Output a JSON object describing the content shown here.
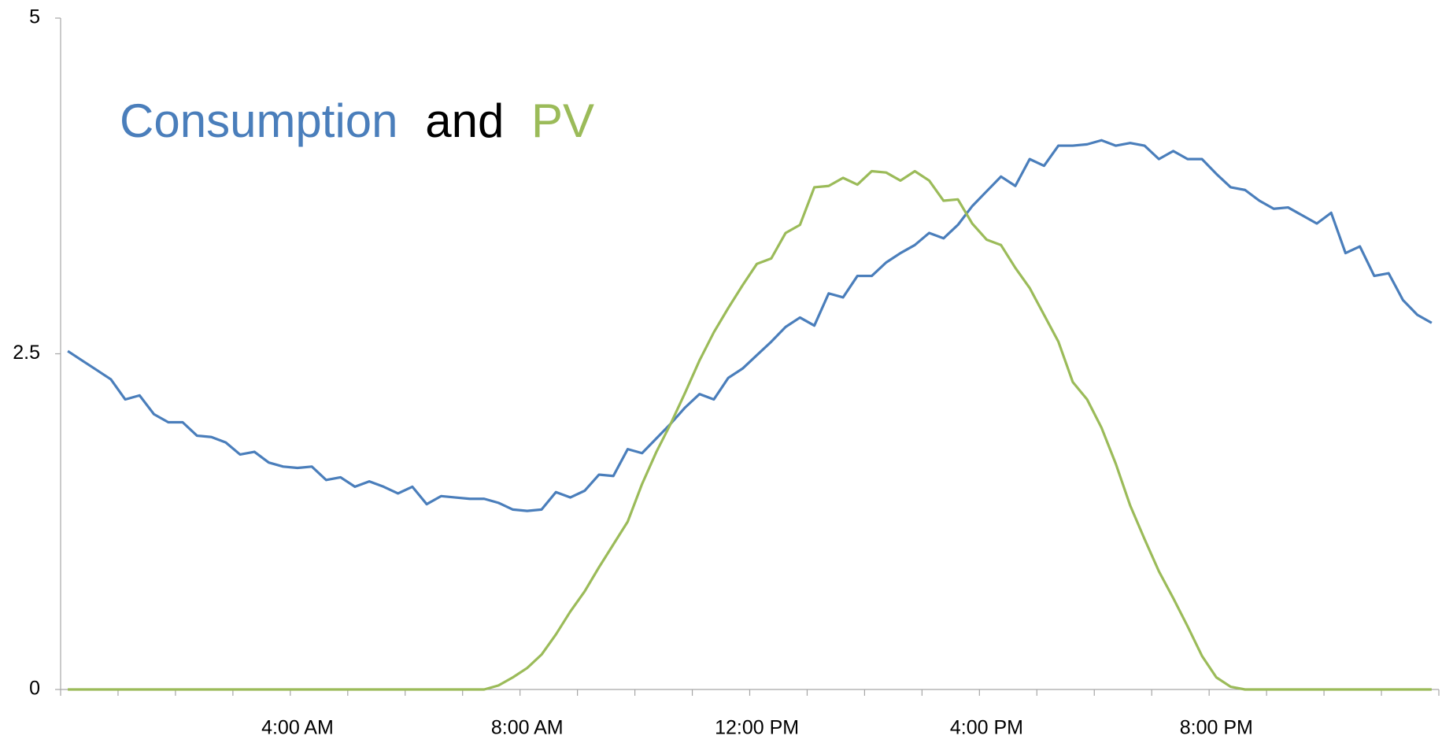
{
  "chart_data": {
    "type": "line",
    "title_connector": "and",
    "title_color": "#000000",
    "categories": [
      null,
      null,
      null,
      null,
      null,
      null,
      null,
      null,
      null,
      null,
      null,
      null,
      null,
      null,
      null,
      null,
      "4:00 AM",
      null,
      null,
      null,
      null,
      null,
      null,
      null,
      null,
      null,
      null,
      null,
      null,
      null,
      null,
      null,
      "8:00 AM",
      null,
      null,
      null,
      null,
      null,
      null,
      null,
      null,
      null,
      null,
      null,
      null,
      null,
      null,
      null,
      "12:00 PM",
      null,
      null,
      null,
      null,
      null,
      null,
      null,
      null,
      null,
      null,
      null,
      null,
      null,
      null,
      null,
      "4:00 PM",
      null,
      null,
      null,
      null,
      null,
      null,
      null,
      null,
      null,
      null,
      null,
      null,
      null,
      null,
      null,
      "8:00 PM",
      null,
      null,
      null,
      null,
      null,
      null,
      null,
      null,
      null,
      null,
      null,
      null,
      null,
      null,
      null
    ],
    "series": [
      {
        "name": "Consumption",
        "color": "#4a7ebb",
        "values": [
          2.52,
          2.45,
          2.38,
          2.31,
          2.16,
          2.19,
          2.05,
          1.99,
          1.99,
          1.89,
          1.88,
          1.84,
          1.75,
          1.77,
          1.69,
          1.66,
          1.65,
          1.66,
          1.56,
          1.58,
          1.51,
          1.55,
          1.51,
          1.46,
          1.51,
          1.38,
          1.44,
          1.43,
          1.42,
          1.42,
          1.39,
          1.34,
          1.33,
          1.34,
          1.47,
          1.43,
          1.48,
          1.6,
          1.59,
          1.79,
          1.76,
          1.87,
          1.98,
          2.1,
          2.2,
          2.16,
          2.32,
          2.39,
          2.49,
          2.59,
          2.7,
          2.77,
          2.71,
          2.95,
          2.92,
          3.08,
          3.08,
          3.18,
          3.25,
          3.31,
          3.4,
          3.36,
          3.46,
          3.6,
          3.71,
          3.82,
          3.75,
          3.95,
          3.9,
          4.05,
          4.05,
          4.06,
          4.09,
          4.05,
          4.07,
          4.05,
          3.95,
          4.01,
          3.95,
          3.95,
          3.84,
          3.74,
          3.72,
          3.64,
          3.58,
          3.59,
          3.53,
          3.47,
          3.55,
          3.25,
          3.3,
          3.08,
          3.1,
          2.9,
          2.79,
          2.73
        ]
      },
      {
        "name": "PV",
        "color": "#9bbb59",
        "values": [
          0,
          0,
          0,
          0,
          0,
          0,
          0,
          0,
          0,
          0,
          0,
          0,
          0,
          0,
          0,
          0,
          0,
          0,
          0,
          0,
          0,
          0,
          0,
          0,
          0,
          0,
          0,
          0,
          0,
          0,
          0.03,
          0.09,
          0.16,
          0.26,
          0.41,
          0.58,
          0.73,
          0.91,
          1.08,
          1.25,
          1.53,
          1.77,
          1.98,
          2.21,
          2.45,
          2.66,
          2.84,
          3.01,
          3.17,
          3.21,
          3.4,
          3.46,
          3.74,
          3.75,
          3.81,
          3.76,
          3.86,
          3.85,
          3.79,
          3.86,
          3.79,
          3.64,
          3.65,
          3.47,
          3.35,
          3.31,
          3.14,
          2.99,
          2.79,
          2.59,
          2.29,
          2.16,
          1.95,
          1.68,
          1.37,
          1.12,
          0.88,
          0.68,
          0.47,
          0.25,
          0.09,
          0.02,
          0,
          0,
          0,
          0,
          0,
          0,
          0,
          0,
          0,
          0,
          0,
          0,
          0,
          0
        ]
      }
    ],
    "ylim": [
      0,
      5
    ],
    "yticks": [
      0,
      2.5,
      5
    ],
    "grid": false
  }
}
